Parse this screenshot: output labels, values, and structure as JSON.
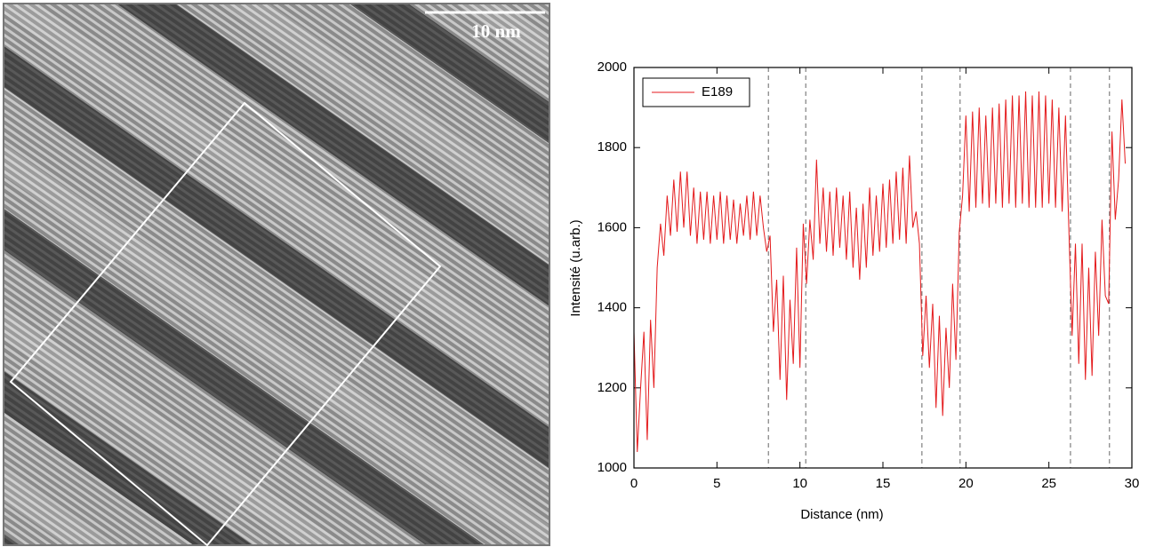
{
  "image": {
    "scale_bar": "10 nm"
  },
  "chart_data": {
    "type": "line",
    "xlabel": "Distance (nm)",
    "ylabel": "Intensité (u.arb.)",
    "xlim": [
      0,
      30
    ],
    "xticks": [
      0,
      5,
      10,
      15,
      20,
      25,
      30
    ],
    "ylim": [
      1000,
      2000
    ],
    "yticks": [
      1000,
      1200,
      1400,
      1600,
      1800,
      2000
    ],
    "legend": "upper-left",
    "vlines": [
      8.1,
      10.35,
      17.35,
      19.65,
      26.3,
      28.65
    ],
    "x": [
      0,
      0.2,
      0.4,
      0.6,
      0.8,
      1.0,
      1.2,
      1.4,
      1.6,
      1.8,
      2.0,
      2.2,
      2.4,
      2.6,
      2.8,
      3.0,
      3.2,
      3.4,
      3.6,
      3.8,
      4.0,
      4.2,
      4.4,
      4.6,
      4.8,
      5.0,
      5.2,
      5.4,
      5.6,
      5.8,
      6.0,
      6.2,
      6.4,
      6.6,
      6.8,
      7.0,
      7.2,
      7.4,
      7.6,
      7.8,
      8.0,
      8.2,
      8.4,
      8.6,
      8.8,
      9.0,
      9.2,
      9.4,
      9.6,
      9.8,
      10.0,
      10.2,
      10.4,
      10.6,
      10.8,
      11.0,
      11.2,
      11.4,
      11.6,
      11.8,
      12.0,
      12.2,
      12.4,
      12.6,
      12.8,
      13.0,
      13.2,
      13.4,
      13.6,
      13.8,
      14.0,
      14.2,
      14.4,
      14.6,
      14.8,
      15.0,
      15.2,
      15.4,
      15.6,
      15.8,
      16.0,
      16.2,
      16.4,
      16.6,
      16.8,
      17.0,
      17.2,
      17.4,
      17.6,
      17.8,
      18.0,
      18.2,
      18.4,
      18.6,
      18.8,
      19.0,
      19.2,
      19.4,
      19.6,
      19.8,
      20.0,
      20.2,
      20.4,
      20.6,
      20.8,
      21.0,
      21.2,
      21.4,
      21.6,
      21.8,
      22.0,
      22.2,
      22.4,
      22.6,
      22.8,
      23.0,
      23.2,
      23.4,
      23.6,
      23.8,
      24.0,
      24.2,
      24.4,
      24.6,
      24.8,
      25.0,
      25.2,
      25.4,
      25.6,
      25.8,
      26.0,
      26.2,
      26.4,
      26.6,
      26.8,
      27.0,
      27.2,
      27.4,
      27.6,
      27.8,
      28.0,
      28.2,
      28.4,
      28.6,
      28.8,
      29.0,
      29.2,
      29.4,
      29.6
    ],
    "series": [
      {
        "name": "E189",
        "color": "#e41a1c",
        "values": [
          1340,
          1040,
          1200,
          1340,
          1070,
          1370,
          1200,
          1500,
          1610,
          1530,
          1680,
          1580,
          1720,
          1590,
          1740,
          1600,
          1740,
          1580,
          1700,
          1560,
          1690,
          1570,
          1690,
          1560,
          1680,
          1570,
          1690,
          1560,
          1680,
          1570,
          1670,
          1560,
          1660,
          1580,
          1680,
          1570,
          1690,
          1580,
          1680,
          1600,
          1540,
          1580,
          1340,
          1470,
          1220,
          1480,
          1170,
          1420,
          1260,
          1550,
          1250,
          1610,
          1460,
          1620,
          1520,
          1770,
          1560,
          1700,
          1540,
          1690,
          1530,
          1700,
          1550,
          1680,
          1520,
          1690,
          1500,
          1650,
          1470,
          1660,
          1500,
          1700,
          1530,
          1680,
          1540,
          1710,
          1550,
          1720,
          1560,
          1740,
          1570,
          1750,
          1560,
          1780,
          1600,
          1640,
          1560,
          1280,
          1430,
          1250,
          1410,
          1150,
          1380,
          1130,
          1350,
          1200,
          1460,
          1270,
          1590,
          1680,
          1880,
          1640,
          1890,
          1650,
          1900,
          1660,
          1880,
          1650,
          1900,
          1660,
          1910,
          1650,
          1920,
          1660,
          1930,
          1650,
          1930,
          1660,
          1940,
          1650,
          1930,
          1650,
          1940,
          1650,
          1930,
          1660,
          1920,
          1650,
          1900,
          1640,
          1880,
          1600,
          1330,
          1560,
          1260,
          1560,
          1220,
          1500,
          1230,
          1540,
          1330,
          1620,
          1430,
          1410,
          1840,
          1620,
          1720,
          1920,
          1760
        ]
      }
    ]
  }
}
